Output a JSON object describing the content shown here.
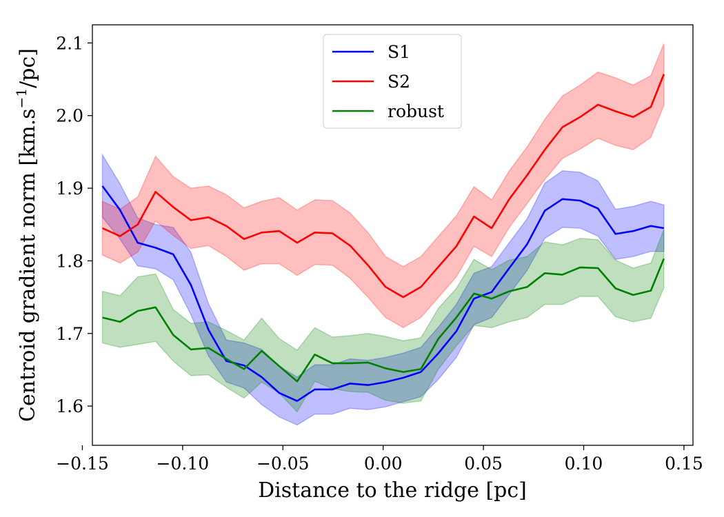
{
  "chart_data": {
    "type": "line",
    "title": "",
    "xlabel": "Distance to the ridge [pc]",
    "ylabel_main": "Centroid gradient norm [km.s",
    "ylabel_sup": "−1",
    "ylabel_tail": "/pc]",
    "xlim": [
      -0.145,
      0.1545
    ],
    "ylim": [
      1.546,
      2.125
    ],
    "xticks": [
      -0.15,
      -0.1,
      -0.05,
      0.0,
      0.05,
      0.1,
      0.15
    ],
    "xtick_labels": [
      "−0.15",
      "−0.10",
      "−0.05",
      "0.00",
      "0.05",
      "0.10",
      "0.15"
    ],
    "yticks": [
      1.6,
      1.7,
      1.8,
      1.9,
      2.0,
      2.1
    ],
    "ytick_labels": [
      "1.6",
      "1.7",
      "1.8",
      "1.9",
      "2.0",
      "2.1"
    ],
    "grid": false,
    "legend_position": "top-center",
    "x": [
      -0.14,
      -0.1312,
      -0.1224,
      -0.1135,
      -0.1047,
      -0.0959,
      -0.0871,
      -0.0782,
      -0.0694,
      -0.0606,
      -0.0518,
      -0.0429,
      -0.0341,
      -0.0253,
      -0.0165,
      -0.0076,
      0.0012,
      0.01,
      0.0188,
      0.0276,
      0.0365,
      0.0453,
      0.0541,
      0.0629,
      0.0718,
      0.0806,
      0.0894,
      0.0982,
      0.1071,
      0.1159,
      0.1247,
      0.1335,
      0.14
    ],
    "series": [
      {
        "name": "S1",
        "color": "#0000ff",
        "values": [
          1.903,
          1.87,
          1.825,
          1.818,
          1.809,
          1.767,
          1.705,
          1.662,
          1.656,
          1.64,
          1.618,
          1.607,
          1.623,
          1.623,
          1.631,
          1.629,
          1.633,
          1.639,
          1.647,
          1.673,
          1.703,
          1.748,
          1.757,
          1.79,
          1.823,
          1.869,
          1.885,
          1.883,
          1.872,
          1.837,
          1.841,
          1.848,
          1.845
        ],
        "lower": [
          1.86,
          1.83,
          1.793,
          1.789,
          1.774,
          1.726,
          1.669,
          1.633,
          1.625,
          1.602,
          1.585,
          1.574,
          1.589,
          1.589,
          1.597,
          1.595,
          1.599,
          1.606,
          1.613,
          1.637,
          1.667,
          1.712,
          1.722,
          1.754,
          1.787,
          1.831,
          1.846,
          1.845,
          1.834,
          1.802,
          1.806,
          1.813,
          1.813
        ],
        "upper": [
          1.946,
          1.906,
          1.859,
          1.85,
          1.846,
          1.812,
          1.741,
          1.691,
          1.687,
          1.678,
          1.655,
          1.64,
          1.657,
          1.657,
          1.665,
          1.663,
          1.667,
          1.673,
          1.681,
          1.709,
          1.74,
          1.783,
          1.792,
          1.825,
          1.858,
          1.907,
          1.924,
          1.922,
          1.91,
          1.871,
          1.875,
          1.882,
          1.877
        ]
      },
      {
        "name": "S2",
        "color": "#ff0000",
        "values": [
          1.845,
          1.834,
          1.85,
          1.895,
          1.874,
          1.856,
          1.86,
          1.848,
          1.83,
          1.839,
          1.841,
          1.825,
          1.839,
          1.838,
          1.821,
          1.794,
          1.764,
          1.75,
          1.764,
          1.792,
          1.82,
          1.861,
          1.845,
          1.885,
          1.918,
          1.953,
          1.984,
          1.998,
          2.015,
          2.006,
          1.998,
          2.012,
          2.057
        ],
        "lower": [
          1.808,
          1.797,
          1.812,
          1.855,
          1.835,
          1.817,
          1.821,
          1.806,
          1.787,
          1.796,
          1.796,
          1.78,
          1.795,
          1.794,
          1.776,
          1.75,
          1.722,
          1.708,
          1.722,
          1.75,
          1.778,
          1.82,
          1.806,
          1.846,
          1.879,
          1.912,
          1.941,
          1.954,
          1.969,
          1.959,
          1.953,
          1.97,
          2.014
        ],
        "upper": [
          1.882,
          1.871,
          1.888,
          1.944,
          1.916,
          1.9,
          1.903,
          1.891,
          1.873,
          1.882,
          1.887,
          1.87,
          1.884,
          1.883,
          1.866,
          1.839,
          1.806,
          1.792,
          1.806,
          1.834,
          1.862,
          1.902,
          1.884,
          1.924,
          1.957,
          1.995,
          2.027,
          2.042,
          2.06,
          2.052,
          2.042,
          2.055,
          2.099
        ]
      },
      {
        "name": "robust",
        "color": "#008000",
        "values": [
          1.722,
          1.716,
          1.731,
          1.736,
          1.698,
          1.678,
          1.68,
          1.665,
          1.651,
          1.676,
          1.655,
          1.634,
          1.671,
          1.659,
          1.659,
          1.66,
          1.652,
          1.647,
          1.651,
          1.693,
          1.722,
          1.755,
          1.748,
          1.758,
          1.764,
          1.783,
          1.781,
          1.791,
          1.79,
          1.762,
          1.753,
          1.759,
          1.803
        ],
        "lower": [
          1.687,
          1.681,
          1.685,
          1.689,
          1.662,
          1.642,
          1.643,
          1.626,
          1.611,
          1.633,
          1.618,
          1.592,
          1.634,
          1.624,
          1.62,
          1.619,
          1.608,
          1.604,
          1.607,
          1.651,
          1.683,
          1.711,
          1.708,
          1.716,
          1.722,
          1.74,
          1.74,
          1.751,
          1.751,
          1.723,
          1.716,
          1.721,
          1.763
        ],
        "upper": [
          1.758,
          1.752,
          1.778,
          1.782,
          1.733,
          1.714,
          1.716,
          1.704,
          1.691,
          1.721,
          1.693,
          1.677,
          1.708,
          1.695,
          1.697,
          1.7,
          1.696,
          1.69,
          1.694,
          1.735,
          1.762,
          1.802,
          1.788,
          1.801,
          1.806,
          1.826,
          1.822,
          1.831,
          1.829,
          1.801,
          1.79,
          1.797,
          1.843
        ]
      }
    ]
  }
}
